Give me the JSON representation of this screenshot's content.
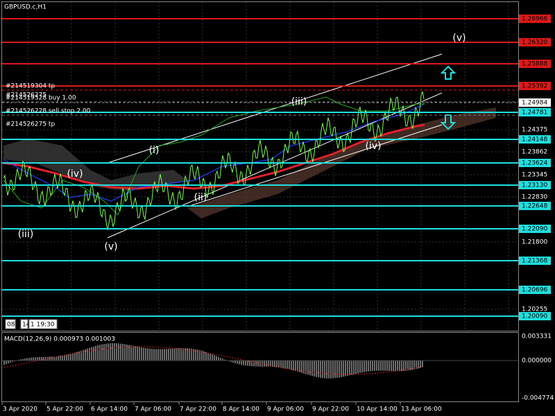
{
  "window": {
    "title": "GBPUSD.c,H1"
  },
  "price_scale": {
    "levels": [
      {
        "label": "1.26966",
        "line": "red"
      },
      {
        "label": "1.26320",
        "line": "red"
      },
      {
        "label": "1.25888",
        "line": "red"
      },
      {
        "label": "1.25392",
        "line": "red"
      },
      {
        "label": "1.24984",
        "line": "current"
      },
      {
        "label": "1.24781",
        "line": "cyan"
      },
      {
        "label": "1.24375",
        "line": "none"
      },
      {
        "label": "1.24148",
        "line": "cyan"
      },
      {
        "label": "1.23862",
        "line": "none"
      },
      {
        "label": "1.23624",
        "line": "cyan"
      },
      {
        "label": "1.23345",
        "line": "none"
      },
      {
        "label": "1.23130",
        "line": "cyan"
      },
      {
        "label": "1.22830",
        "line": "none"
      },
      {
        "label": "1.22648",
        "line": "cyan"
      },
      {
        "label": "1.22090",
        "line": "cyan"
      },
      {
        "label": "1.21800",
        "line": "none"
      },
      {
        "label": "1.21368",
        "line": "cyan"
      },
      {
        "label": "1.20696",
        "line": "cyan"
      },
      {
        "label": "1.20255",
        "line": "none"
      },
      {
        "label": "1.20090",
        "line": "cyan"
      }
    ]
  },
  "orders": [
    "#214519304 tp",
    "#214526275",
    "#214519328 buy 1.00",
    "#214526228 sell stop 2.00",
    "#214526275 tp"
  ],
  "waves": [
    "(v)",
    "(iii)",
    "(iv)",
    "(i)",
    "(ii)",
    "(iii)",
    "(v)",
    "(iv)"
  ],
  "clock": [
    "08",
    "14",
    "1 19:30"
  ],
  "macd": {
    "label": "MACD(12,26,9) 0.000973 0.001003",
    "scale": [
      "0.003331",
      "0.000000",
      "-0.004774"
    ]
  },
  "time_axis": [
    "3 Apr 2020",
    "5 Apr 22:00",
    "6 Apr 14:00",
    "7 Apr 06:00",
    "7 Apr 22:00",
    "8 Apr 14:00",
    "9 Apr 06:00",
    "9 Apr 22:00",
    "10 Apr 14:00",
    "13 Apr 06:00"
  ]
}
